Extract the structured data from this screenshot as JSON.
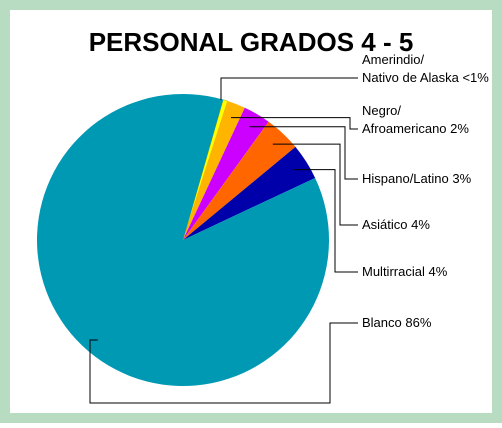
{
  "chart_data": {
    "type": "pie",
    "title": "PERSONAL GRADOS 4 - 5",
    "categories": [
      "Amerindio/\nNativo de Alaska",
      "Negro/\nAfroamericano",
      "Hispano/Latino",
      "Asiático",
      "Multirracial",
      "Blanco"
    ],
    "values": [
      0.5,
      2,
      3,
      4,
      4,
      86
    ],
    "value_labels": [
      "<1%",
      "2%",
      "3%",
      "4%",
      "4%",
      "86%"
    ],
    "colors": [
      "#ffff00",
      "#ffb400",
      "#cc00ff",
      "#ff6600",
      "#0000aa",
      "#0099b4"
    ]
  }
}
